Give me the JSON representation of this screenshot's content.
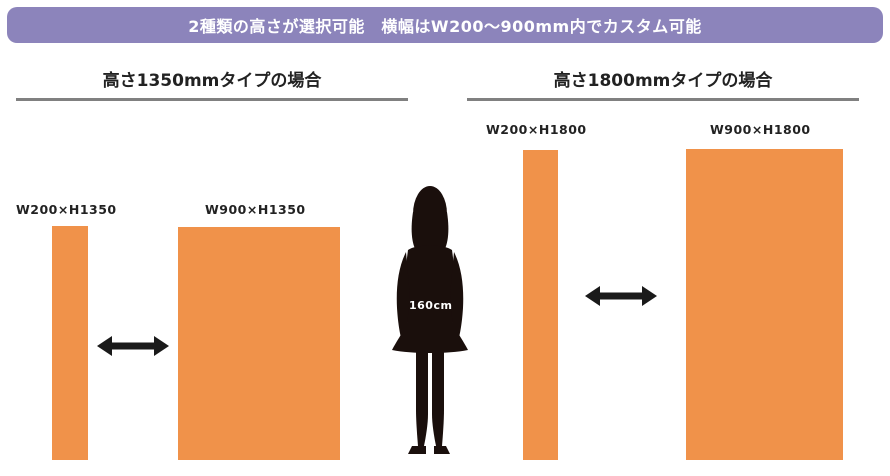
{
  "banner": {
    "text": "2種類の高さが選択可能　横幅はW200〜900mm内でカスタム可能"
  },
  "sections": {
    "left": {
      "title": "高さ1350mmタイプの場合",
      "narrow_label": "W200×H1350",
      "wide_label": "W900×H1350"
    },
    "right": {
      "title": "高さ1800mmタイプの場合",
      "narrow_label": "W200×H1800",
      "wide_label": "W900×H1800"
    }
  },
  "person": {
    "height_label": "160cm"
  },
  "colors": {
    "banner": "#8c84bb",
    "panel": "#f0924a",
    "rule": "#808080",
    "silhouette": "#1a0f0c",
    "arrow": "#1a1a1a"
  }
}
